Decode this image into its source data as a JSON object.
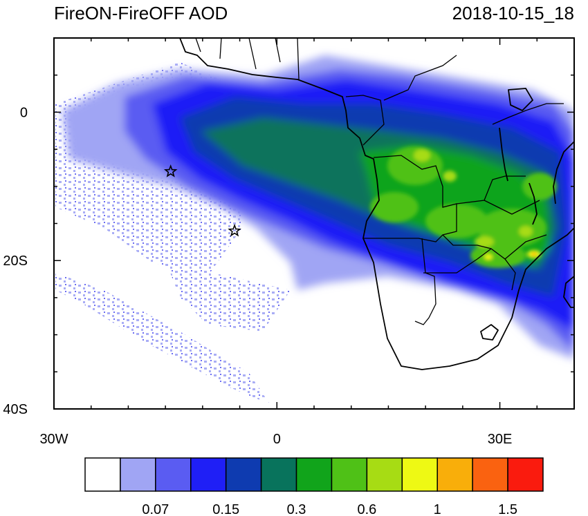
{
  "title": "FireON-FireOFF AOD",
  "timestamp": "2018-10-15_18",
  "map": {
    "lon_range": [
      -30,
      40
    ],
    "lat_range": [
      -40,
      10
    ],
    "x_ticks": [
      {
        "value": -30,
        "label": "30W"
      },
      {
        "value": 0,
        "label": "0"
      },
      {
        "value": 30,
        "label": "30E"
      }
    ],
    "y_ticks": [
      {
        "value": 0,
        "label": "0"
      },
      {
        "value": -20,
        "label": "20S"
      },
      {
        "value": -40,
        "label": "40S"
      }
    ],
    "markers": [
      {
        "name": "star-marker",
        "lon": -14.3,
        "lat": -8.0
      },
      {
        "name": "star-marker",
        "lon": -5.7,
        "lat": -16.0
      }
    ],
    "land_color": "#ffffff",
    "coastline_color": "#000000"
  },
  "colorbar": {
    "bins": [
      {
        "color": "#ffffff",
        "label": ""
      },
      {
        "color": "#a0a5f4",
        "label": "0.07"
      },
      {
        "color": "#5a5cf2",
        "label": ""
      },
      {
        "color": "#1f1ff6",
        "label": "0.15"
      },
      {
        "color": "#0e3bb0",
        "label": ""
      },
      {
        "color": "#08735c",
        "label": "0.3"
      },
      {
        "color": "#11a41b",
        "label": ""
      },
      {
        "color": "#4fc117",
        "label": "0.6"
      },
      {
        "color": "#a7dc14",
        "label": ""
      },
      {
        "color": "#eef914",
        "label": "1"
      },
      {
        "color": "#f9ae0a",
        "label": ""
      },
      {
        "color": "#fa6210",
        "label": "1.5"
      },
      {
        "color": "#fa1b0e",
        "label": ""
      }
    ]
  }
}
